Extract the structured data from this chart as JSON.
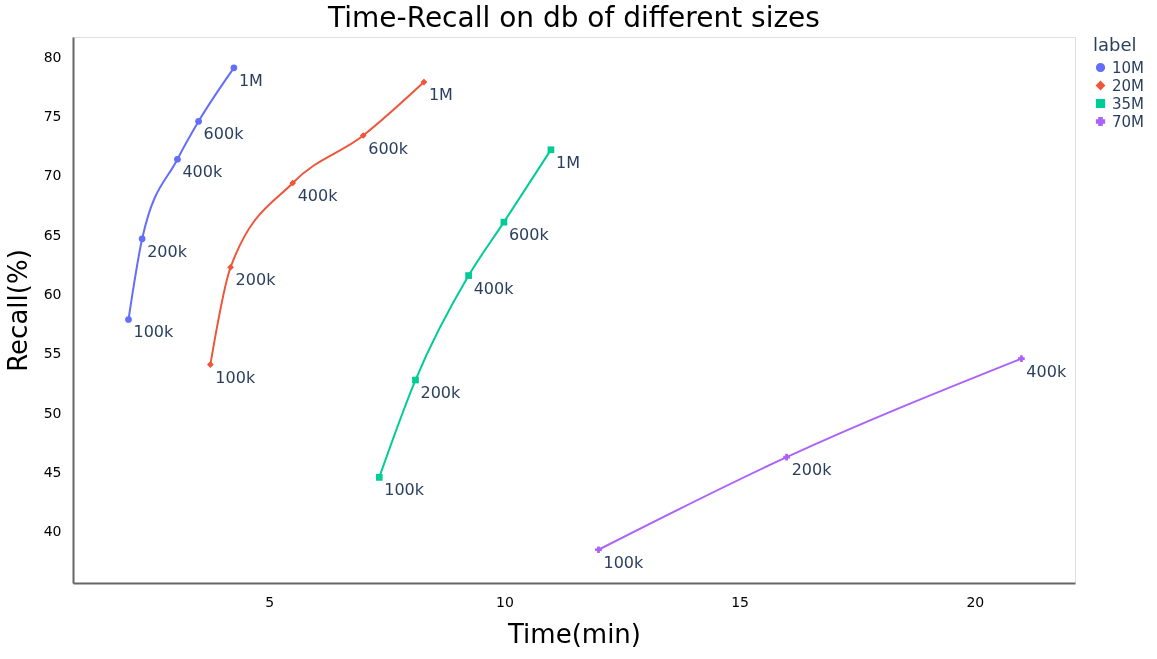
{
  "chart_data": {
    "type": "line",
    "title": "Time-Recall on db of different sizes",
    "xlabel": "Time(min)",
    "ylabel": "Recall(%)",
    "legend_title": "label",
    "legend": "top right",
    "grid": false,
    "xlim": [
      0.83,
      22.13
    ],
    "xticks": [
      5,
      10,
      15,
      20
    ],
    "ylim": [
      35.7,
      81.7
    ],
    "yticks": [
      40,
      45,
      50,
      55,
      60,
      65,
      70,
      75,
      80
    ],
    "series": [
      {
        "name": "10M",
        "color": "#636efa",
        "marker": "circle",
        "x": [
          2.01,
          2.3,
          3.05,
          3.5,
          4.25
        ],
        "values": [
          57.9,
          64.7,
          71.4,
          74.6,
          79.1
        ]
      },
      {
        "name": "20M",
        "color": "#ef553b",
        "marker": "diamond",
        "x": [
          3.75,
          4.18,
          5.5,
          7.0,
          8.29
        ],
        "values": [
          54.1,
          62.3,
          69.4,
          73.4,
          77.9
        ]
      },
      {
        "name": "35M",
        "color": "#00cc96",
        "marker": "square",
        "x": [
          7.34,
          8.11,
          9.24,
          9.99,
          10.99
        ],
        "values": [
          44.6,
          52.8,
          61.6,
          66.1,
          72.2
        ]
      },
      {
        "name": "70M",
        "color": "#ab63fa",
        "marker": "cross",
        "x": [
          12.0,
          16.0,
          20.99
        ],
        "values": [
          38.5,
          46.3,
          54.6
        ]
      }
    ],
    "annotations": [
      {
        "text": "100k",
        "x": 2.01,
        "y": 57.9
      },
      {
        "text": "200k",
        "x": 2.3,
        "y": 64.7
      },
      {
        "text": "400k",
        "x": 3.05,
        "y": 71.4
      },
      {
        "text": "600k",
        "x": 3.5,
        "y": 74.6
      },
      {
        "text": "1M",
        "x": 4.25,
        "y": 79.1
      },
      {
        "text": "100k",
        "x": 3.75,
        "y": 54.1
      },
      {
        "text": "200k",
        "x": 4.18,
        "y": 62.3
      },
      {
        "text": "400k",
        "x": 5.5,
        "y": 69.4
      },
      {
        "text": "600k",
        "x": 7.0,
        "y": 73.4
      },
      {
        "text": "1M",
        "x": 8.29,
        "y": 77.9
      },
      {
        "text": "100k",
        "x": 7.34,
        "y": 44.6
      },
      {
        "text": "200k",
        "x": 8.11,
        "y": 52.8
      },
      {
        "text": "400k",
        "x": 9.24,
        "y": 61.6
      },
      {
        "text": "600k",
        "x": 9.99,
        "y": 66.1
      },
      {
        "text": "1M",
        "x": 10.99,
        "y": 72.2
      },
      {
        "text": "100k",
        "x": 12.0,
        "y": 38.5
      },
      {
        "text": "200k",
        "x": 16.0,
        "y": 46.3
      },
      {
        "text": "400k",
        "x": 20.99,
        "y": 54.6
      }
    ]
  }
}
